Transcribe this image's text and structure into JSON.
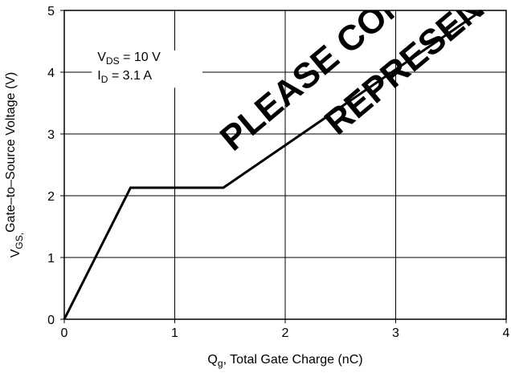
{
  "chart_data": {
    "type": "line",
    "title": "",
    "xlabel": {
      "main": "Q",
      "sub": "g",
      "rest": ", Total Gate Charge (nC)"
    },
    "ylabel": {
      "main": "V",
      "sub": "GS,",
      "rest": "Gate–to–Source Voltage (V)"
    },
    "xlim": [
      0,
      4
    ],
    "ylim": [
      0,
      5
    ],
    "x_ticks": [
      0,
      1,
      2,
      3,
      4
    ],
    "y_ticks": [
      0,
      1,
      2,
      3,
      4,
      5
    ],
    "x_tick_labels": [
      "0",
      "1",
      "2",
      "3",
      "4"
    ],
    "y_tick_labels": [
      "0",
      "1",
      "2",
      "3",
      "4",
      "5"
    ],
    "grid": true,
    "series": [
      {
        "x": [
          0,
          0.6,
          1.44,
          3.78
        ],
        "y": [
          0,
          2.13,
          2.13,
          5
        ]
      }
    ],
    "annotation": {
      "line1_main": "V",
      "line1_sub": "DS",
      "line1_rest": " = 10 V",
      "line2_main": "I",
      "line2_sub": "D",
      "line2_rest": " = 3.1 A"
    },
    "watermark": [
      "PLEASE CONTACT",
      "REPRESENTATIVE"
    ],
    "colors": {
      "line": "#000000",
      "grid": "#000000",
      "watermark": "#d4d4d4"
    }
  }
}
